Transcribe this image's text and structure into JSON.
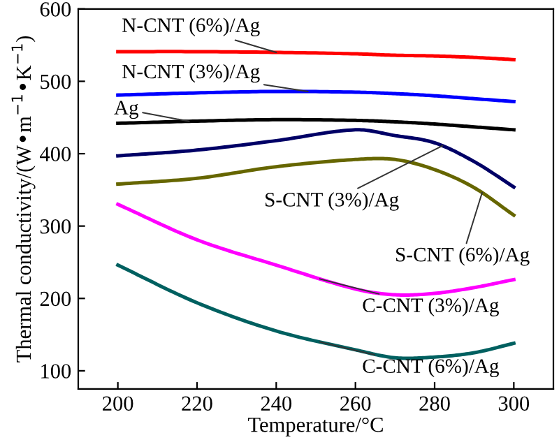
{
  "chart_data": {
    "type": "line",
    "xlabel": "Temperature/°C",
    "ylabel": "Thermal conductivity/(W•m$^{−1}$•K$^{−1}$)",
    "x": [
      200,
      220,
      240,
      260,
      270,
      280,
      290,
      300
    ],
    "series": [
      {
        "name": "N-CNT (6%)/Ag",
        "color": "#ff0000",
        "values": [
          541,
          541,
          540,
          538,
          536,
          535,
          533,
          530
        ]
      },
      {
        "name": "N-CNT (3%)/Ag",
        "color": "#0000ff",
        "values": [
          481,
          484,
          486,
          485,
          483,
          480,
          476,
          472
        ]
      },
      {
        "name": "Ag",
        "color": "#000000",
        "values": [
          442,
          445,
          447,
          446,
          444,
          441,
          437,
          433
        ]
      },
      {
        "name": "S-CNT (3%)/Ag",
        "color": "#000066",
        "values": [
          397,
          405,
          418,
          433,
          425,
          415,
          389,
          354
        ]
      },
      {
        "name": "S-CNT (6%)/Ag",
        "color": "#666600",
        "values": [
          358,
          366,
          382,
          392,
          392,
          378,
          353,
          315
        ]
      },
      {
        "name": "C-CNT (3%)/Ag",
        "color": "#ff00ff",
        "values": [
          330,
          281,
          246,
          213,
          205,
          207,
          215,
          226
        ]
      },
      {
        "name": "C-CNT (6%)/Ag",
        "color": "#006060",
        "values": [
          246,
          194,
          155,
          129,
          118,
          119,
          125,
          138
        ]
      }
    ],
    "xlim": [
      190,
      310
    ],
    "ylim": [
      75,
      600
    ],
    "xticks": [
      200,
      220,
      240,
      260,
      280,
      300
    ],
    "yticks": [
      100,
      200,
      300,
      400,
      500,
      600
    ],
    "grid": false,
    "legend": false,
    "marker": "none",
    "line_style": "solid"
  }
}
